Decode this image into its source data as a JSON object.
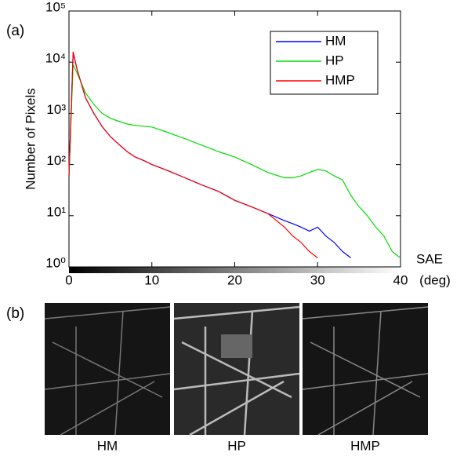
{
  "chart_data": {
    "type": "line",
    "panel_label": "(a)",
    "y_label": "Number of Pixels",
    "x_label": [
      "SAE",
      "(deg)"
    ],
    "x": [
      0,
      0.5,
      1,
      2,
      3,
      4,
      5,
      6,
      7,
      8,
      9,
      10,
      12,
      14,
      16,
      18,
      20,
      22,
      24,
      26,
      27,
      28,
      29,
      30,
      31,
      32,
      33,
      34,
      35,
      36,
      37,
      38,
      39,
      40
    ],
    "series": [
      {
        "name": "HM",
        "color": "#0000ff",
        "values": [
          60,
          15000,
          7000,
          2000,
          1000,
          550,
          350,
          250,
          180,
          140,
          120,
          100,
          75,
          55,
          40,
          30,
          20,
          15,
          11,
          8,
          7,
          6,
          5,
          6,
          4,
          3,
          2,
          1.5,
          null,
          null,
          null,
          null,
          null,
          null
        ]
      },
      {
        "name": "HP",
        "color": "#00dd00",
        "values": [
          60,
          9000,
          6000,
          2500,
          1500,
          1000,
          800,
          700,
          620,
          580,
          560,
          540,
          420,
          320,
          240,
          180,
          140,
          100,
          70,
          55,
          55,
          60,
          70,
          80,
          75,
          60,
          50,
          25,
          15,
          10,
          6,
          4,
          2,
          1.5
        ]
      },
      {
        "name": "HMP",
        "color": "#ff0000",
        "values": [
          60,
          16000,
          7000,
          2000,
          1000,
          550,
          350,
          250,
          180,
          140,
          120,
          100,
          75,
          55,
          40,
          30,
          20,
          15,
          11,
          6,
          4,
          3,
          2,
          1.5,
          null,
          null,
          null,
          null,
          null,
          null,
          null,
          null,
          null,
          null
        ]
      }
    ],
    "xlim": [
      0,
      40
    ],
    "xticks": [
      0,
      10,
      20,
      30,
      40
    ],
    "ylim": [
      1,
      100000
    ],
    "log_y": true,
    "yticks": [
      {
        "value": 1,
        "label": "10⁰"
      },
      {
        "value": 10,
        "label": "10¹"
      },
      {
        "value": 100,
        "label": "10²"
      },
      {
        "value": 1000,
        "label": "10³"
      },
      {
        "value": 10000,
        "label": "10⁴"
      },
      {
        "value": 100000,
        "label": "10⁵"
      }
    ],
    "legend": "upper right",
    "grid": false
  },
  "images": {
    "panel_label": "(b)",
    "captions": [
      "HM",
      "HP",
      "HMP"
    ]
  }
}
